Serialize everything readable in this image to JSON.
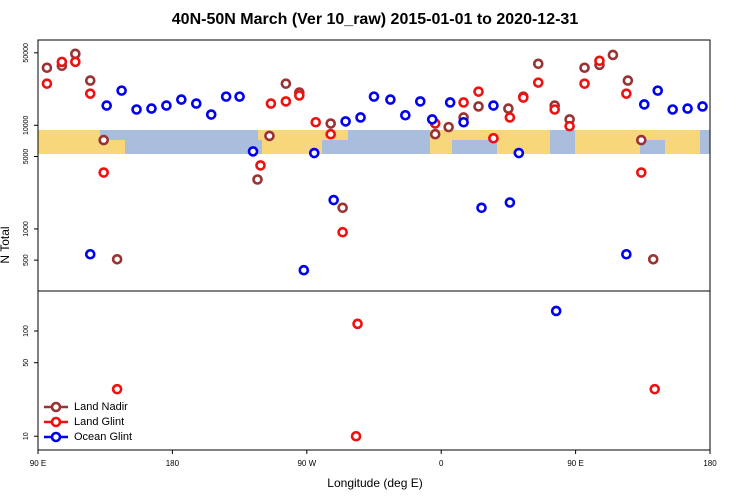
{
  "chart_data": [
    {
      "type": "scatter",
      "title": "40N-50N March (Ver 10_raw)   2015-01-01 to 2020-12-31",
      "ylabel": "N Total",
      "xlim": [
        90,
        540
      ],
      "ylim": [
        252,
        66500
      ],
      "log_y": true,
      "xticks": [
        {
          "value": 90,
          "label": "90 E"
        },
        180,
        {
          "value": 270,
          "label": "90 W"
        },
        {
          "value": 360,
          "label": "0"
        },
        {
          "value": 450,
          "label": "90 E"
        },
        {
          "value": 540,
          "label": "180"
        }
      ],
      "yticks": [
        500,
        1000,
        5000,
        10000,
        50000
      ],
      "legend": "lower left",
      "series": [
        {
          "name": "Land Nadir",
          "color": "#993333",
          "x": [
            96,
            106,
            115,
            125,
            134,
            143,
            237,
            245,
            256,
            265,
            286,
            294,
            356,
            365,
            375,
            385,
            395,
            405,
            415,
            425,
            436,
            446,
            456,
            466,
            475,
            485,
            494,
            502
          ],
          "values": [
            35900,
            37500,
            48900,
            27000,
            7200,
            510,
            3000,
            7900,
            25200,
            20700,
            10400,
            1600,
            8200,
            9600,
            11900,
            15200,
            7500,
            14500,
            18900,
            39200,
            15500,
            11400,
            35900,
            38300,
            47700,
            27000,
            7200,
            510
          ]
        },
        {
          "name": "Land Glint",
          "color": "#ee1111",
          "x": [
            96,
            106,
            115,
            125,
            134,
            239,
            246,
            256,
            265,
            276,
            286,
            294,
            356,
            375,
            385,
            395,
            406,
            415,
            425,
            436,
            446,
            456,
            466,
            484,
            494
          ],
          "values": [
            25200,
            40900,
            40900,
            20200,
            3500,
            4100,
            16200,
            17000,
            19400,
            10700,
            8200,
            930,
            10400,
            16600,
            21100,
            7500,
            11900,
            18500,
            25800,
            14200,
            9800,
            25200,
            41900,
            20200,
            3500
          ]
        },
        {
          "name": "Ocean Glint",
          "color": "#0000ee",
          "x": [
            125,
            136,
            146,
            156,
            166,
            176,
            186,
            196,
            206,
            216,
            225,
            234,
            268,
            275,
            288,
            296,
            306,
            315,
            326,
            336,
            346,
            354,
            366,
            375,
            387,
            395,
            406,
            412,
            484,
            496,
            505,
            515,
            525,
            535
          ],
          "values": [
            570,
            15500,
            21600,
            14200,
            14500,
            15500,
            17700,
            16200,
            12700,
            18900,
            18900,
            5600,
            400,
            5400,
            1900,
            10900,
            11900,
            18900,
            17700,
            12500,
            17000,
            11400,
            16600,
            10700,
            1600,
            15500,
            1800,
            5400,
            570,
            15900,
            21600,
            14200,
            14500,
            15200
          ]
        }
      ]
    },
    {
      "type": "scatter",
      "xlabel": "Longitude (deg E)",
      "ylim": [
        7.4,
        240
      ],
      "log_y": true,
      "yticks": [
        10,
        50,
        100
      ],
      "series": [
        {
          "color": "#993333",
          "x": [],
          "values": []
        },
        {
          "color": "#ee1111",
          "x": [
            143,
            304,
            303,
            503
          ],
          "values": [
            28,
            117,
            10,
            28
          ]
        },
        {
          "color": "#0000ee",
          "x": [
            437
          ],
          "values": [
            155
          ]
        }
      ]
    }
  ]
}
